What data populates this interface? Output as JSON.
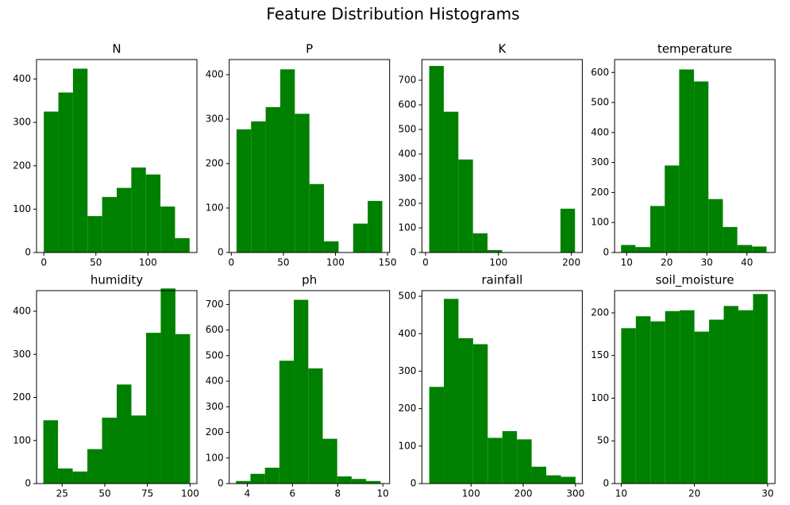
{
  "title": "Feature Distribution Histograms",
  "chart_data": [
    {
      "type": "histogram",
      "title": "N",
      "color": "#008000",
      "bins": [
        0,
        14,
        28,
        42,
        56,
        70,
        84,
        98,
        112,
        126,
        140
      ],
      "values": [
        325,
        369,
        424,
        84,
        128,
        149,
        196,
        180,
        106,
        33
      ],
      "xlim": [
        -7,
        147
      ],
      "ylim": [
        0,
        445
      ],
      "xticks": [
        0,
        50,
        100
      ],
      "yticks": [
        0,
        100,
        200,
        300,
        400
      ]
    },
    {
      "type": "histogram",
      "title": "P",
      "color": "#008000",
      "bins": [
        5,
        19,
        33,
        47,
        61,
        75,
        89,
        103,
        117,
        131,
        145
      ],
      "values": [
        277,
        295,
        327,
        412,
        312,
        154,
        25,
        0,
        65,
        116
      ],
      "xlim": [
        -2,
        152
      ],
      "ylim": [
        0,
        434
      ],
      "xticks": [
        0,
        50,
        100,
        150
      ],
      "yticks": [
        0,
        100,
        200,
        300,
        400
      ]
    },
    {
      "type": "histogram",
      "title": "K",
      "color": "#008000",
      "bins": [
        5,
        25,
        45,
        65,
        85,
        105,
        125,
        145,
        165,
        185,
        205
      ],
      "values": [
        758,
        572,
        378,
        78,
        10,
        0,
        0,
        0,
        0,
        178
      ],
      "xlim": [
        -5,
        215
      ],
      "ylim": [
        0,
        784
      ],
      "xticks": [
        0,
        100,
        200
      ],
      "yticks": [
        0,
        100,
        200,
        300,
        400,
        500,
        600,
        700
      ]
    },
    {
      "type": "histogram",
      "title": "temperature",
      "color": "#008000",
      "bins": [
        8.6,
        12.2,
        15.9,
        19.5,
        23.1,
        26.8,
        30.4,
        34.0,
        37.6,
        41.3,
        44.9
      ],
      "values": [
        25,
        18,
        155,
        290,
        610,
        570,
        178,
        85,
        25,
        20
      ],
      "xlim": [
        7,
        47
      ],
      "ylim": [
        0,
        643
      ],
      "xticks": [
        10,
        20,
        30,
        40
      ],
      "yticks": [
        0,
        100,
        200,
        300,
        400,
        500,
        600
      ]
    },
    {
      "type": "histogram",
      "title": "humidity",
      "color": "#008000",
      "bins": [
        14,
        22.6,
        31.2,
        39.8,
        48.4,
        57,
        65.6,
        74.2,
        82.8,
        91.4,
        100
      ],
      "values": [
        147,
        35,
        28,
        80,
        153,
        230,
        158,
        350,
        453,
        347
      ],
      "xlim": [
        10,
        104
      ],
      "ylim": [
        0,
        448
      ],
      "xticks": [
        25,
        50,
        75,
        100
      ],
      "yticks": [
        0,
        100,
        200,
        300,
        400
      ]
    },
    {
      "type": "histogram",
      "title": "ph",
      "color": "#008000",
      "bins": [
        3.5,
        4.14,
        4.78,
        5.42,
        6.06,
        6.7,
        7.34,
        7.98,
        8.62,
        9.26,
        9.9
      ],
      "values": [
        10,
        38,
        62,
        480,
        718,
        450,
        175,
        28,
        18,
        10
      ],
      "xlim": [
        3.2,
        10.3
      ],
      "ylim": [
        0,
        754
      ],
      "xticks": [
        4,
        6,
        8,
        10
      ],
      "yticks": [
        0,
        100,
        200,
        300,
        400,
        500,
        600,
        700
      ]
    },
    {
      "type": "histogram",
      "title": "rainfall",
      "color": "#008000",
      "bins": [
        20,
        48,
        76,
        104,
        132,
        160,
        188,
        216,
        244,
        272,
        300
      ],
      "values": [
        258,
        493,
        388,
        372,
        122,
        140,
        118,
        45,
        22,
        18
      ],
      "xlim": [
        6,
        313
      ],
      "ylim": [
        0,
        515
      ],
      "xticks": [
        100,
        200,
        300
      ],
      "yticks": [
        0,
        100,
        200,
        300,
        400,
        500
      ]
    },
    {
      "type": "histogram",
      "title": "soil_moisture",
      "color": "#008000",
      "bins": [
        10,
        12,
        14,
        16,
        18,
        20,
        22,
        24,
        26,
        28,
        30
      ],
      "values": [
        182,
        196,
        190,
        202,
        203,
        178,
        192,
        208,
        203,
        222
      ],
      "xlim": [
        9.1,
        31
      ],
      "ylim": [
        0,
        226
      ],
      "xticks": [
        10,
        20,
        30
      ],
      "yticks": [
        0,
        50,
        100,
        150,
        200
      ]
    }
  ]
}
